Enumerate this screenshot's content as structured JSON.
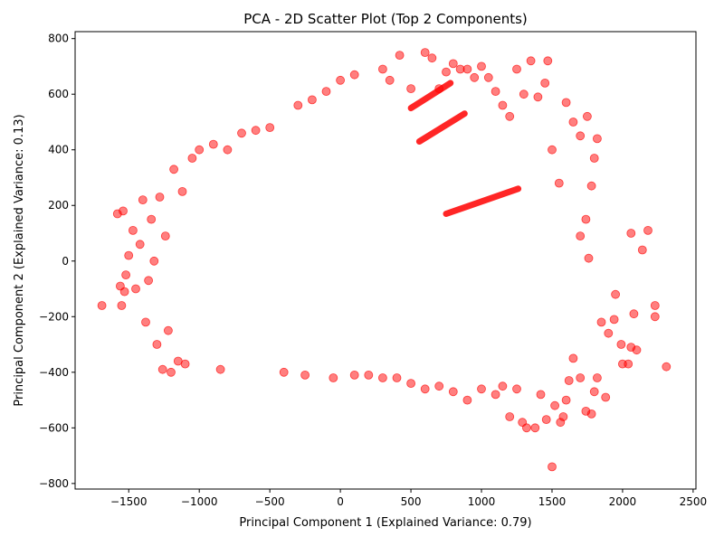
{
  "chart_data": {
    "type": "scatter",
    "title": "PCA - 2D Scatter Plot (Top 2 Components)",
    "xlabel": "Principal Component 1 (Explained Variance: 0.79)",
    "ylabel": "Principal Component 2 (Explained Variance: 0.13)",
    "xlim": [
      -1880,
      2520
    ],
    "ylim": [
      -820,
      825
    ],
    "xticks": [
      -1500,
      -1000,
      -500,
      0,
      500,
      1000,
      1500,
      2000,
      2500
    ],
    "yticks": [
      -800,
      -600,
      -400,
      -200,
      0,
      200,
      400,
      600,
      800
    ],
    "xtick_labels": [
      "−1500",
      "−1000",
      "−500",
      "0",
      "500",
      "1000",
      "1500",
      "2000",
      "2500"
    ],
    "ytick_labels": [
      "−800",
      "−600",
      "−400",
      "−200",
      "0",
      "200",
      "400",
      "600",
      "800"
    ],
    "grid": false,
    "legend": "none",
    "marker_color": "#ff0000",
    "marker_alpha": 0.5,
    "series": [
      {
        "points": [
          [
            -1690,
            -160
          ],
          [
            -1580,
            170
          ],
          [
            -1540,
            180
          ],
          [
            -1560,
            -90
          ],
          [
            -1530,
            -110
          ],
          [
            -1550,
            -160
          ],
          [
            -1520,
            -50
          ],
          [
            -1500,
            20
          ],
          [
            -1470,
            110
          ],
          [
            -1450,
            -100
          ],
          [
            -1420,
            60
          ],
          [
            -1400,
            220
          ],
          [
            -1380,
            -220
          ],
          [
            -1360,
            -70
          ],
          [
            -1340,
            150
          ],
          [
            -1320,
            0
          ],
          [
            -1300,
            -300
          ],
          [
            -1280,
            230
          ],
          [
            -1260,
            -390
          ],
          [
            -1240,
            90
          ],
          [
            -1220,
            -250
          ],
          [
            -1200,
            -400
          ],
          [
            -1180,
            330
          ],
          [
            -1150,
            -360
          ],
          [
            -1120,
            250
          ],
          [
            -1100,
            -370
          ],
          [
            -1050,
            370
          ],
          [
            -1000,
            400
          ],
          [
            -900,
            420
          ],
          [
            -850,
            -390
          ],
          [
            -800,
            400
          ],
          [
            -700,
            460
          ],
          [
            -600,
            470
          ],
          [
            -500,
            480
          ],
          [
            -400,
            -400
          ],
          [
            -300,
            560
          ],
          [
            -250,
            -410
          ],
          [
            -200,
            580
          ],
          [
            -100,
            610
          ],
          [
            -50,
            -420
          ],
          [
            0,
            650
          ],
          [
            100,
            670
          ],
          [
            200,
            -410
          ],
          [
            300,
            690
          ],
          [
            350,
            650
          ],
          [
            400,
            -420
          ],
          [
            420,
            740
          ],
          [
            500,
            620
          ],
          [
            600,
            750
          ],
          [
            650,
            730
          ],
          [
            700,
            620
          ],
          [
            750,
            680
          ],
          [
            800,
            710
          ],
          [
            850,
            690
          ],
          [
            900,
            690
          ],
          [
            950,
            660
          ],
          [
            1000,
            700
          ],
          [
            1050,
            660
          ],
          [
            1100,
            610
          ],
          [
            1150,
            560
          ],
          [
            1200,
            520
          ],
          [
            1250,
            690
          ],
          [
            1300,
            600
          ],
          [
            1350,
            720
          ],
          [
            1400,
            590
          ],
          [
            1450,
            640
          ],
          [
            1470,
            720
          ],
          [
            1500,
            400
          ],
          [
            1550,
            280
          ],
          [
            1600,
            570
          ],
          [
            1650,
            500
          ],
          [
            1700,
            450
          ],
          [
            1750,
            520
          ],
          [
            1800,
            370
          ],
          [
            1820,
            440
          ],
          [
            1780,
            270
          ],
          [
            1740,
            150
          ],
          [
            1760,
            10
          ],
          [
            1700,
            90
          ],
          [
            2060,
            100
          ],
          [
            2140,
            40
          ],
          [
            2180,
            110
          ],
          [
            2230,
            -160
          ],
          [
            2230,
            -200
          ],
          [
            2310,
            -380
          ],
          [
            2080,
            -190
          ],
          [
            2100,
            -320
          ],
          [
            2060,
            -310
          ],
          [
            2040,
            -370
          ],
          [
            2000,
            -370
          ],
          [
            1990,
            -300
          ],
          [
            1950,
            -120
          ],
          [
            1940,
            -210
          ],
          [
            1900,
            -260
          ],
          [
            1880,
            -490
          ],
          [
            1850,
            -220
          ],
          [
            1820,
            -420
          ],
          [
            1800,
            -470
          ],
          [
            1780,
            -550
          ],
          [
            1740,
            -540
          ],
          [
            1700,
            -420
          ],
          [
            1650,
            -350
          ],
          [
            1620,
            -430
          ],
          [
            1600,
            -500
          ],
          [
            1580,
            -560
          ],
          [
            1560,
            -580
          ],
          [
            1520,
            -520
          ],
          [
            1500,
            -740
          ],
          [
            1460,
            -570
          ],
          [
            1420,
            -480
          ],
          [
            1380,
            -600
          ],
          [
            1320,
            -600
          ],
          [
            1290,
            -580
          ],
          [
            1250,
            -460
          ],
          [
            1200,
            -560
          ],
          [
            1150,
            -450
          ],
          [
            1100,
            -480
          ],
          [
            1000,
            -460
          ],
          [
            900,
            -500
          ],
          [
            800,
            -470
          ],
          [
            700,
            -450
          ],
          [
            600,
            -460
          ],
          [
            500,
            -440
          ],
          [
            300,
            -420
          ],
          [
            100,
            -410
          ]
        ]
      }
    ],
    "trend_segments": [
      {
        "x": [
          500,
          780
        ],
        "y": [
          550,
          640
        ]
      },
      {
        "x": [
          560,
          880
        ],
        "y": [
          430,
          530
        ]
      },
      {
        "x": [
          750,
          1260
        ],
        "y": [
          170,
          260
        ]
      }
    ]
  }
}
